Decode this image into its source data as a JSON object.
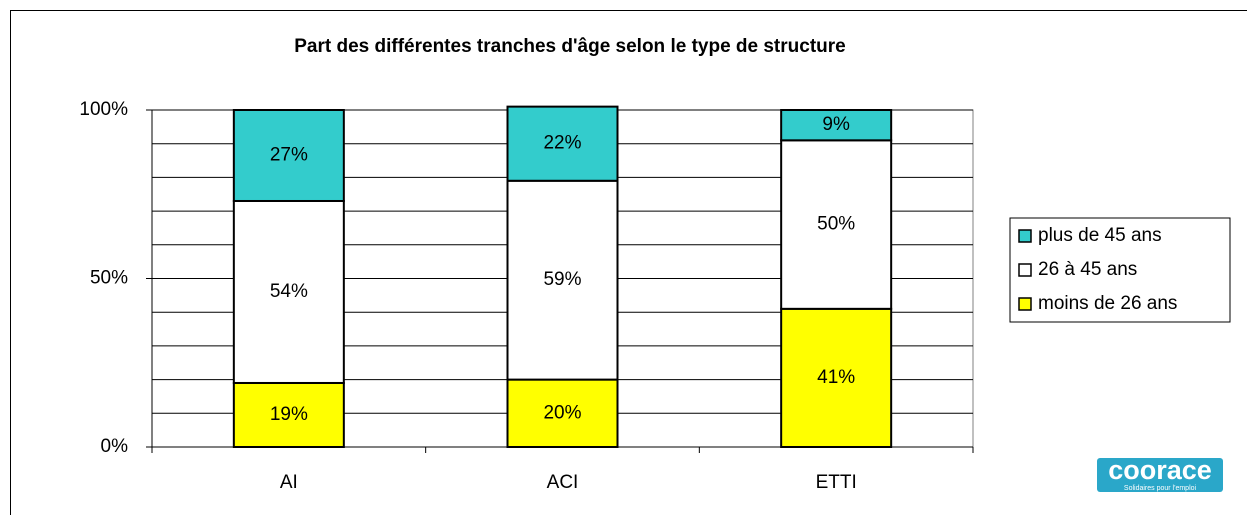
{
  "chart_data": {
    "type": "stacked_bar",
    "title": "Part des différentes tranches d'âge selon le type de structure",
    "categories": [
      "AI",
      "ACI",
      "ETTI"
    ],
    "series": [
      {
        "name": "moins de 26 ans",
        "color": "#ffff00",
        "values": [
          19,
          20,
          41
        ],
        "value_labels": [
          "19%",
          "20%",
          "41%"
        ]
      },
      {
        "name": "26 à 45 ans",
        "color": "#ffffff",
        "values": [
          54,
          59,
          50
        ],
        "value_labels": [
          "54%",
          "59%",
          "50%"
        ]
      },
      {
        "name": "plus de 45 ans",
        "color": "#33cccc",
        "values": [
          27,
          22,
          9
        ],
        "value_labels": [
          "27%",
          "22%",
          "9%"
        ]
      }
    ],
    "ylim": [
      0,
      100
    ],
    "yticks": [
      {
        "value": 0,
        "label": "0%"
      },
      {
        "value": 50,
        "label": "50%"
      },
      {
        "value": 100,
        "label": "100%"
      }
    ],
    "ygrid": [
      10,
      20,
      30,
      40,
      50,
      60,
      70,
      80,
      90,
      100
    ],
    "legend": "right"
  },
  "logo": {
    "text": "coorace",
    "tagline": "Solidaires pour l'emploi"
  }
}
